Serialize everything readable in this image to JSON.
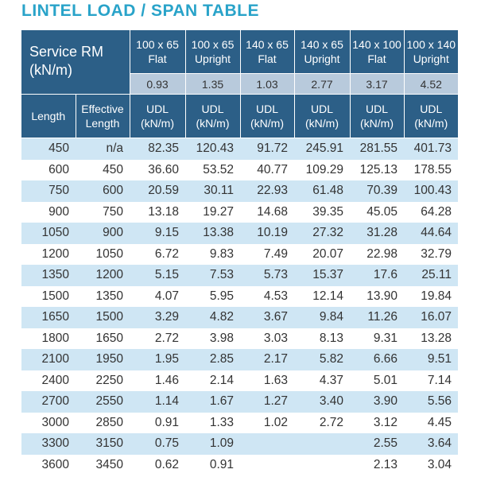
{
  "title": "LINTEL LOAD / SPAN TABLE",
  "table": {
    "service_rm": [
      "Service RM",
      "(kN/m)"
    ],
    "products": [
      {
        "size": "100 x 65",
        "style": "Flat",
        "service_rm": "0.93"
      },
      {
        "size": "100 x 65",
        "style": "Upright",
        "service_rm": "1.35"
      },
      {
        "size": "140 x 65",
        "style": "Flat",
        "service_rm": "1.03"
      },
      {
        "size": "140 x 65",
        "style": "Upright",
        "service_rm": "2.77"
      },
      {
        "size": "140 x 100",
        "style": "Flat",
        "service_rm": "3.17"
      },
      {
        "size": "100 x 140",
        "style": "Upright",
        "service_rm": "4.52"
      }
    ],
    "length_header": "Length",
    "effective_header": [
      "Effective",
      "Length"
    ],
    "udl_header": [
      "UDL",
      "(kN/m)"
    ],
    "rows": [
      [
        "450",
        "n/a",
        "82.35",
        "120.43",
        "91.72",
        "245.91",
        "281.55",
        "401.73"
      ],
      [
        "600",
        "450",
        "36.60",
        "53.52",
        "40.77",
        "109.29",
        "125.13",
        "178.55"
      ],
      [
        "750",
        "600",
        "20.59",
        "30.11",
        "22.93",
        "61.48",
        "70.39",
        "100.43"
      ],
      [
        "900",
        "750",
        "13.18",
        "19.27",
        "14.68",
        "39.35",
        "45.05",
        "64.28"
      ],
      [
        "1050",
        "900",
        "9.15",
        "13.38",
        "10.19",
        "27.32",
        "31.28",
        "44.64"
      ],
      [
        "1200",
        "1050",
        "6.72",
        "9.83",
        "7.49",
        "20.07",
        "22.98",
        "32.79"
      ],
      [
        "1350",
        "1200",
        "5.15",
        "7.53",
        "5.73",
        "15.37",
        "17.6",
        "25.11"
      ],
      [
        "1500",
        "1350",
        "4.07",
        "5.95",
        "4.53",
        "12.14",
        "13.90",
        "19.84"
      ],
      [
        "1650",
        "1500",
        "3.29",
        "4.82",
        "3.67",
        "9.84",
        "11.26",
        "16.07"
      ],
      [
        "1800",
        "1650",
        "2.72",
        "3.98",
        "3.03",
        "8.13",
        "9.31",
        "13.28"
      ],
      [
        "2100",
        "1950",
        "1.95",
        "2.85",
        "2.17",
        "5.82",
        "6.66",
        "9.51"
      ],
      [
        "2400",
        "2250",
        "1.46",
        "2.14",
        "1.63",
        "4.37",
        "5.01",
        "7.14"
      ],
      [
        "2700",
        "2550",
        "1.14",
        "1.67",
        "1.27",
        "3.40",
        "3.90",
        "5.56"
      ],
      [
        "3000",
        "2850",
        "0.91",
        "1.33",
        "1.02",
        "2.72",
        "3.12",
        "4.45"
      ],
      [
        "3300",
        "3150",
        "0.75",
        "1.09",
        null,
        null,
        "2.55",
        "3.64"
      ],
      [
        "3600",
        "3450",
        "0.62",
        "0.91",
        null,
        null,
        "2.13",
        "3.04"
      ]
    ]
  }
}
